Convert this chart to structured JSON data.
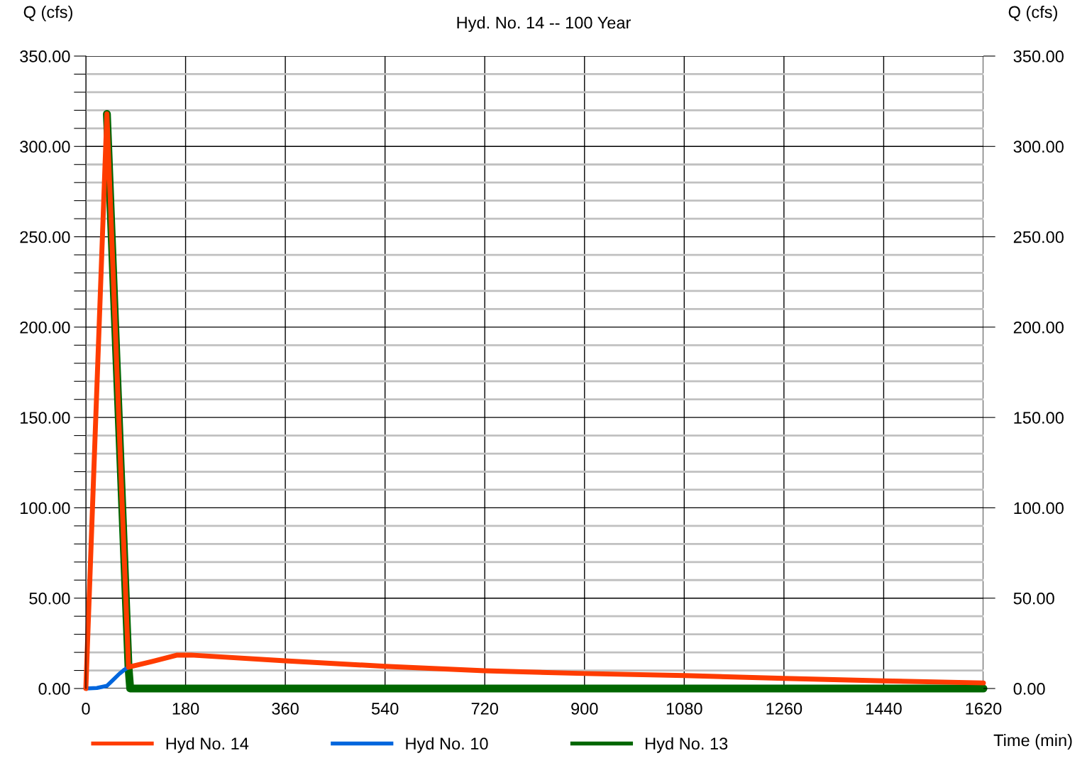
{
  "chart_data": {
    "type": "line",
    "subtitle": "Hyd. No. 14 -- 100 Year",
    "xlabel": "Time (min)",
    "ylabel": "Q (cfs)",
    "y2label": "Q (cfs)",
    "series": [
      {
        "name": "Hyd No. 14",
        "color": "#ff3c00",
        "x": [
          0,
          38,
          77,
          120,
          165,
          190,
          360,
          540,
          720,
          900,
          1080,
          1260,
          1440,
          1620
        ],
        "values": [
          0,
          318,
          11.8,
          15,
          18.5,
          18.5,
          15.3,
          12.3,
          9.8,
          8.3,
          7.2,
          5.6,
          4.2,
          3.1
        ]
      },
      {
        "name": "Hyd No. 10",
        "color": "#0066dd",
        "x": [
          0,
          20,
          38,
          50,
          60,
          70,
          77
        ],
        "values": [
          0,
          0.3,
          1.5,
          5,
          8,
          10.5,
          11.8
        ]
      },
      {
        "name": "Hyd No. 13",
        "color": "#006600",
        "x": [
          38,
          77,
          80,
          1620
        ],
        "values": [
          318,
          11.8,
          0,
          0
        ]
      }
    ],
    "xlim": [
      0,
      1620
    ],
    "xticks": [
      0,
      180,
      360,
      540,
      720,
      900,
      1080,
      1260,
      1440,
      1620
    ],
    "ylim": [
      0,
      350
    ],
    "yticks": [
      {
        "value": 0,
        "label": "0.00"
      },
      {
        "value": 10,
        "label": null
      },
      {
        "value": 20,
        "label": null
      },
      {
        "value": 30,
        "label": null
      },
      {
        "value": 40,
        "label": null
      },
      {
        "value": 50,
        "label": "50.00"
      },
      {
        "value": 60,
        "label": null
      },
      {
        "value": 70,
        "label": null
      },
      {
        "value": 80,
        "label": null
      },
      {
        "value": 90,
        "label": null
      },
      {
        "value": 100,
        "label": "100.00"
      },
      {
        "value": 110,
        "label": null
      },
      {
        "value": 120,
        "label": null
      },
      {
        "value": 130,
        "label": null
      },
      {
        "value": 140,
        "label": null
      },
      {
        "value": 150,
        "label": "150.00"
      },
      {
        "value": 160,
        "label": null
      },
      {
        "value": 170,
        "label": null
      },
      {
        "value": 180,
        "label": null
      },
      {
        "value": 190,
        "label": null
      },
      {
        "value": 200,
        "label": "200.00"
      },
      {
        "value": 210,
        "label": null
      },
      {
        "value": 220,
        "label": null
      },
      {
        "value": 230,
        "label": null
      },
      {
        "value": 240,
        "label": null
      },
      {
        "value": 250,
        "label": "250.00"
      },
      {
        "value": 260,
        "label": null
      },
      {
        "value": 270,
        "label": null
      },
      {
        "value": 280,
        "label": null
      },
      {
        "value": 290,
        "label": null
      },
      {
        "value": 300,
        "label": "300.00"
      },
      {
        "value": 310,
        "label": null
      },
      {
        "value": 320,
        "label": null
      },
      {
        "value": 330,
        "label": null
      },
      {
        "value": 340,
        "label": null
      },
      {
        "value": 350,
        "label": "350.00"
      }
    ],
    "y2lim": [
      0,
      350
    ],
    "y2ticks": [
      {
        "value": 0,
        "label": "0.00"
      },
      {
        "value": 50,
        "label": "50.00"
      },
      {
        "value": 100,
        "label": "100.00"
      },
      {
        "value": 150,
        "label": "150.00"
      },
      {
        "value": 200,
        "label": "200.00"
      },
      {
        "value": 250,
        "label": "250.00"
      },
      {
        "value": 300,
        "label": "300.00"
      },
      {
        "value": 350,
        "label": "350.00"
      }
    ],
    "grid": true,
    "legend": "bottom",
    "marker": "none",
    "line_style": "solid"
  }
}
